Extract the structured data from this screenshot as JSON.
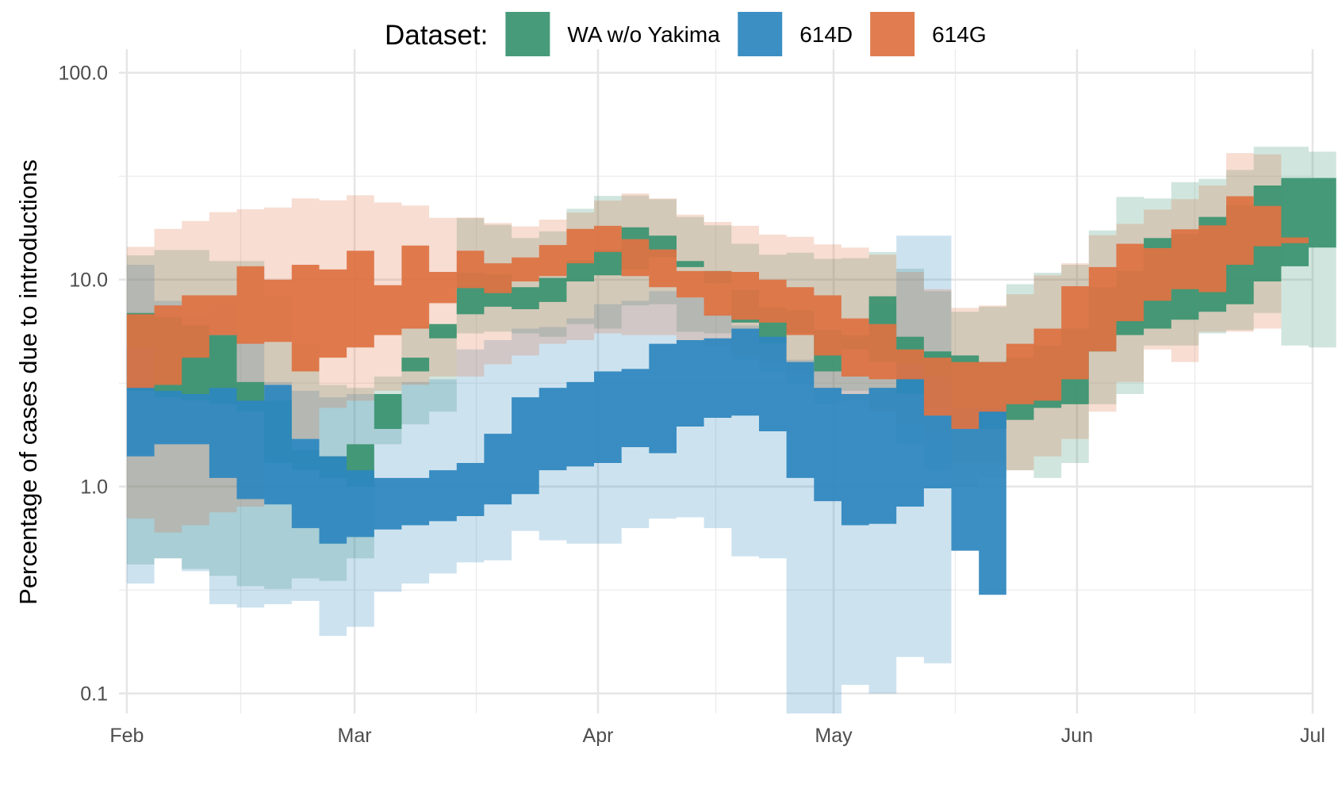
{
  "chart_data": {
    "type": "area",
    "title": "",
    "xlabel": "",
    "ylabel": "Percentage of cases due to introductions",
    "yscale": "log10",
    "ylim": [
      0.08,
      130
    ],
    "xlim": [
      "2020-01-31",
      "2020-07-01"
    ],
    "y_ticks": [
      0.1,
      1.0,
      10.0,
      100.0
    ],
    "y_tick_labels": [
      "0.1",
      "1.0",
      "10.0",
      "100.0"
    ],
    "x_ticks": [
      "2020-02-01",
      "2020-03-01",
      "2020-04-01",
      "2020-05-01",
      "2020-06-01",
      "2020-07-01"
    ],
    "x_tick_labels": [
      "Feb",
      "Mar",
      "Apr",
      "May",
      "Jun",
      "Jul"
    ],
    "grid": true,
    "legend": {
      "title": "Dataset:",
      "position": "top"
    },
    "step_days": 3.5,
    "x_start": "2020-02-01",
    "series": [
      {
        "name": "WA w/o Yakima",
        "color": "#3a9370",
        "x_start": "2020-02-01",
        "inner_low": [
          2.9,
          2.7,
          2.6,
          2.5,
          2.3,
          1.3,
          1.2,
          1.1,
          1.0,
          2.8,
          3.6,
          6.1,
          6.8,
          7.4,
          7.2,
          7.8,
          9.8,
          10.5,
          11.2,
          12.8,
          11.5,
          9.6,
          6.2,
          4.9,
          5.5,
          3.6,
          4.6,
          4.0,
          2.8,
          2.4,
          1.9,
          1.9,
          2.1,
          2.4,
          2.5,
          4.5,
          5.4,
          5.8,
          6.4,
          7.0,
          7.6,
          9.8,
          11.6,
          14.3,
          20.2,
          24.0
        ],
        "inner_high": [
          6.9,
          6.6,
          6.0,
          5.4,
          3.2,
          2.6,
          1.5,
          1.4,
          1.6,
          1.9,
          4.2,
          5.2,
          10.8,
          10.6,
          9.2,
          10.2,
          12.4,
          13.9,
          17.9,
          16.3,
          12.3,
          11.0,
          8.9,
          7.3,
          7.1,
          5.7,
          5.4,
          8.3,
          5.3,
          4.5,
          4.3,
          4.0,
          4.2,
          4.8,
          5.8,
          9.2,
          11.0,
          15.9,
          16.6,
          20.1,
          22.9,
          28.5,
          31.0,
          31.0
        ],
        "outer_low": [
          0.42,
          0.45,
          0.4,
          0.37,
          0.33,
          0.32,
          0.36,
          0.35,
          0.45,
          1.6,
          2.0,
          2.3,
          5.5,
          5.6,
          5.5,
          5.3,
          6.1,
          5.8,
          7.5,
          7.6,
          5.6,
          5.5,
          4.1,
          3.6,
          3.1,
          2.5,
          2.9,
          2.4,
          1.6,
          1.2,
          1.0,
          1.1,
          1.2,
          1.1,
          1.3,
          2.5,
          2.8,
          4.8,
          4.8,
          5.5,
          5.7,
          6.9,
          4.8,
          4.7
        ],
        "outer_high": [
          13.1,
          13.9,
          13.9,
          12.3,
          12.3,
          8.3,
          4.9,
          3.1,
          3.0,
          3.4,
          6.0,
          5.9,
          19.8,
          18.4,
          15.9,
          17.1,
          22.0,
          25.4,
          25.5,
          24.5,
          20.1,
          18.3,
          14.9,
          13.2,
          13.5,
          12.6,
          12.7,
          13.6,
          11.3,
          8.8,
          7.0,
          7.4,
          9.5,
          10.8,
          11.8,
          17.3,
          25.1,
          24.7,
          29.6,
          30.7,
          33.9,
          43.9,
          43.9,
          41.5
        ]
      },
      {
        "name": "614D",
        "color": "#2d87be",
        "x_start": "2020-02-01",
        "inner_low": [
          1.4,
          1.6,
          1.6,
          1.1,
          0.87,
          0.82,
          0.63,
          0.53,
          0.57,
          0.62,
          0.65,
          0.68,
          0.72,
          0.82,
          0.92,
          1.2,
          1.25,
          1.3,
          1.55,
          1.45,
          1.95,
          2.15,
          2.2,
          1.85,
          1.1,
          0.85,
          0.65,
          0.66,
          0.8,
          0.98,
          0.49,
          0.3
        ],
        "inner_high": [
          4.7,
          2.9,
          2.8,
          3.0,
          2.6,
          3.1,
          1.7,
          1.4,
          1.2,
          1.1,
          1.1,
          1.2,
          1.3,
          1.8,
          2.7,
          3.0,
          3.2,
          3.6,
          3.7,
          4.9,
          5.1,
          5.2,
          5.8,
          5.3,
          4.0,
          3.0,
          2.8,
          3.0,
          3.9,
          3.4,
          2.4,
          2.4
        ],
        "outer_low": [
          0.34,
          0.45,
          0.39,
          0.27,
          0.26,
          0.27,
          0.28,
          0.19,
          0.21,
          0.31,
          0.34,
          0.38,
          0.43,
          0.44,
          0.61,
          0.55,
          0.53,
          0.53,
          0.63,
          0.7,
          0.71,
          0.63,
          0.46,
          0.45,
          0.07,
          0.06,
          0.11,
          0.1,
          0.15,
          0.14
        ],
        "outer_high": [
          11.8,
          7.9,
          6.8,
          7.7,
          5.0,
          3.2,
          2.9,
          2.7,
          2.8,
          2.8,
          3.2,
          3.3,
          4.6,
          5.1,
          5.8,
          5.9,
          6.5,
          7.6,
          7.9,
          8.8,
          8.2,
          6.9,
          6.0,
          4.9,
          4.1,
          3.6,
          5.2,
          7.6,
          16.3,
          16.3
        ]
      },
      {
        "name": "614G",
        "color": "#de7243",
        "x_start": "2020-02-01",
        "inner_low": [
          3.0,
          3.1,
          4.2,
          5.4,
          4.9,
          5.0,
          3.6,
          4.2,
          4.7,
          5.4,
          5.8,
          7.7,
          9.1,
          8.6,
          9.8,
          10.4,
          12.0,
          13.6,
          10.4,
          9.2,
          8.2,
          6.7,
          6.4,
          6.2,
          5.4,
          4.3,
          3.4,
          3.3,
          3.3,
          2.2,
          1.9,
          2.3,
          2.5,
          2.6,
          3.3,
          4.5,
          6.3,
          7.9,
          9.0,
          8.7,
          11.8,
          14.5,
          15.0,
          8.6
        ],
        "inner_high": [
          6.8,
          7.5,
          8.4,
          8.4,
          11.6,
          10.0,
          11.8,
          11.2,
          13.8,
          9.4,
          14.6,
          10.9,
          13.8,
          12.0,
          12.8,
          14.7,
          17.6,
          18.2,
          15.7,
          14.0,
          11.0,
          11.0,
          10.9,
          10.0,
          9.2,
          8.4,
          6.5,
          6.1,
          4.6,
          4.2,
          4.0,
          4.0,
          4.9,
          5.8,
          9.3,
          11.5,
          14.9,
          14.2,
          17.5,
          18.3,
          25.3,
          22.7,
          16.0
        ],
        "outer_low": [
          0.7,
          0.6,
          0.65,
          0.75,
          0.8,
          1.3,
          1.7,
          2.4,
          2.6,
          2.9,
          3.1,
          3.4,
          3.4,
          3.9,
          4.3,
          4.9,
          5.1,
          5.5,
          5.4,
          5.4,
          5.1,
          4.8,
          4.3,
          4.0,
          3.5,
          2.9,
          2.6,
          2.3,
          2.0,
          1.7,
          1.3,
          1.3,
          1.2,
          1.4,
          1.7,
          2.3,
          3.2,
          4.6,
          4.0,
          5.6,
          5.6,
          5.8,
          4.7
        ],
        "outer_high": [
          14.4,
          17.6,
          19.2,
          21.2,
          21.9,
          22.3,
          24.7,
          24.2,
          25.6,
          23.6,
          22.8,
          19.9,
          20.0,
          18.8,
          18.1,
          19.5,
          21.1,
          24.1,
          26.1,
          24.7,
          20.6,
          19.0,
          18.2,
          16.5,
          16.1,
          14.8,
          14.3,
          13.2,
          10.9,
          9.0,
          7.3,
          7.5,
          8.5,
          10.5,
          12.0,
          16.4,
          18.6,
          21.8,
          24.5,
          28.5,
          40.9,
          40.3
        ]
      }
    ]
  }
}
